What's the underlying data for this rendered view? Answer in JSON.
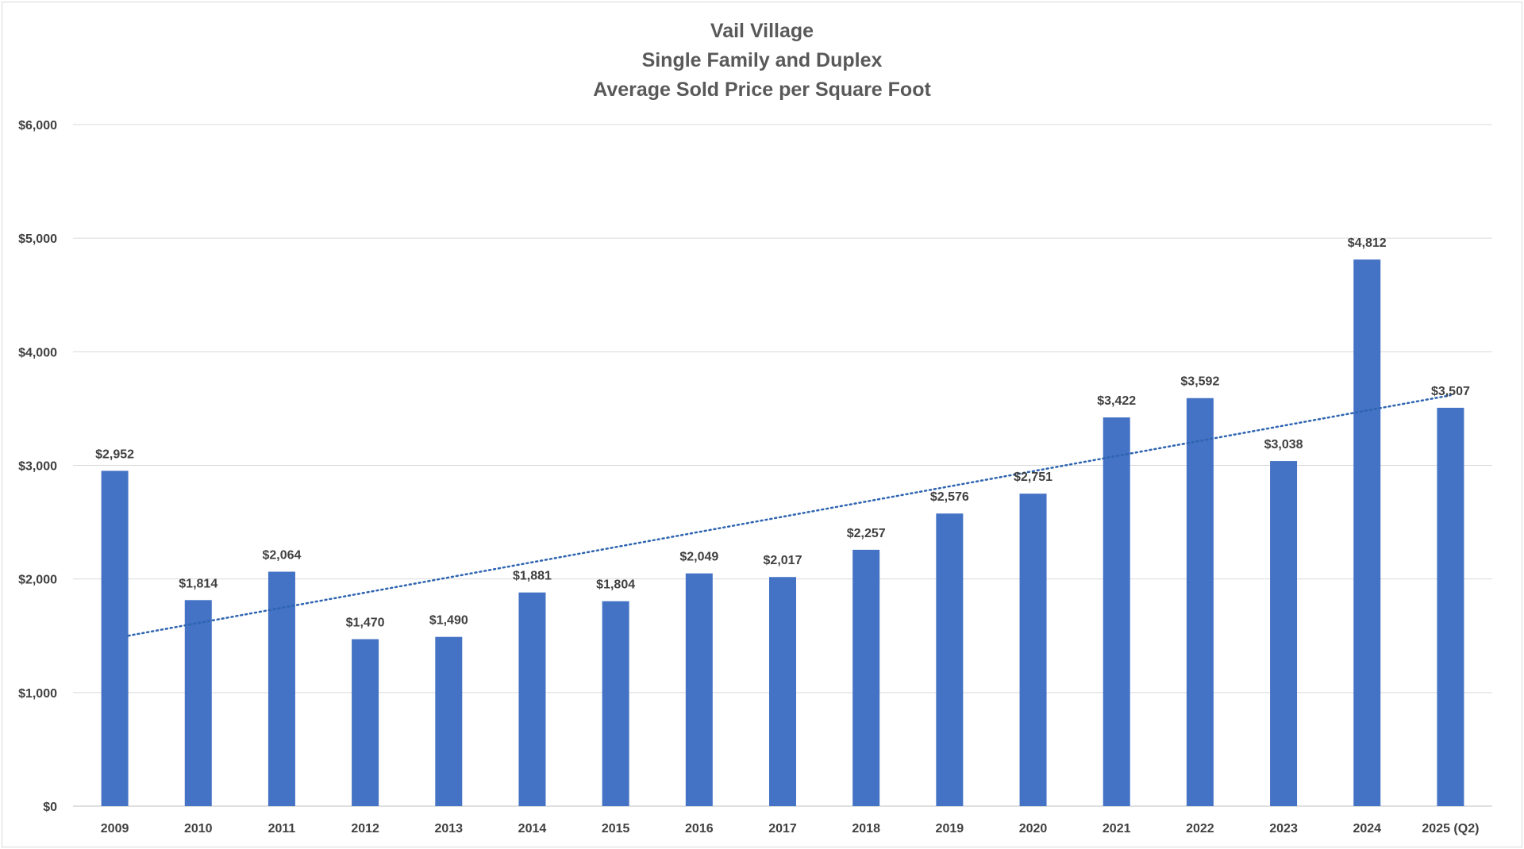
{
  "chart_data": {
    "type": "bar",
    "title_lines": [
      "Vail Village",
      "Single Family and Duplex",
      "Average Sold Price per Square Foot"
    ],
    "categories": [
      "2009",
      "2010",
      "2011",
      "2012",
      "2013",
      "2014",
      "2015",
      "2016",
      "2017",
      "2018",
      "2019",
      "2020",
      "2021",
      "2022",
      "2023",
      "2024",
      "2025 (Q2)"
    ],
    "values": [
      2952,
      1814,
      2064,
      1470,
      1490,
      1881,
      1804,
      2049,
      2017,
      2257,
      2576,
      2751,
      3422,
      3592,
      3038,
      4812,
      3507
    ],
    "data_labels": [
      "$2,952",
      "$1,814",
      "$2,064",
      "$1,470",
      "$1,490",
      "$1,881",
      "$1,804",
      "$2,049",
      "$2,017",
      "$2,257",
      "$2,576",
      "$2,751",
      "$3,422",
      "$3,592",
      "$3,038",
      "$4,812",
      "$3,507"
    ],
    "ylim": [
      0,
      6000
    ],
    "y_ticks": [
      0,
      1000,
      2000,
      3000,
      4000,
      5000,
      6000
    ],
    "y_tick_labels": [
      "$0",
      "$1,000",
      "$2,000",
      "$3,000",
      "$4,000",
      "$5,000",
      "$6,000"
    ],
    "xlabel": "",
    "ylabel": "",
    "grid": true,
    "legend": "none",
    "trendline": {
      "type": "linear",
      "style": "dotted"
    },
    "colors": {
      "bar": "#4472C4",
      "trendline": "#2E64B0",
      "gridline": "#D9D9D9",
      "text": "#404040",
      "title": "#595959"
    }
  }
}
